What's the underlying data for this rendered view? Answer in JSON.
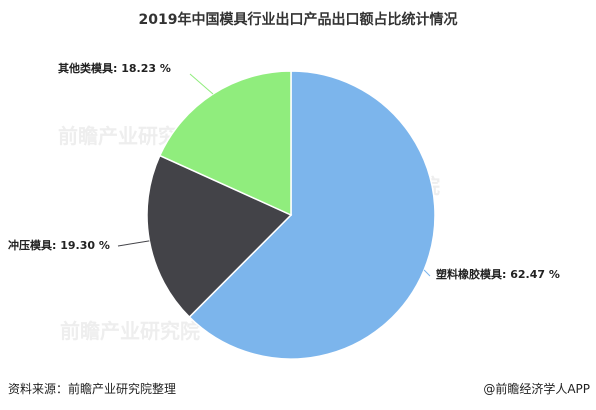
{
  "chart_data": {
    "type": "pie",
    "title": "2019年中国模具行业出口产品出口额占比统计情况",
    "slices": [
      {
        "label": "塑料橡胶模具",
        "value": 62.47,
        "label_text": "塑料橡胶模具: 62.47 %",
        "color": "#7cb5ec"
      },
      {
        "label": "冲压模具",
        "value": 19.3,
        "label_text": "冲压模具: 19.30 %",
        "color": "#434348"
      },
      {
        "label": "其他类模具",
        "value": 18.23,
        "label_text": "其他类模具: 18.23 %",
        "color": "#90ed7d"
      }
    ]
  },
  "footer": {
    "source": "资料来源：前瞻产业研究院整理",
    "brand": "@前瞻经济学人APP"
  },
  "watermark": "前瞻产业研究院"
}
